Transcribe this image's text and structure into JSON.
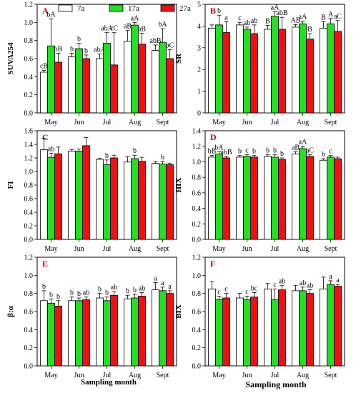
{
  "figure": {
    "colors": {
      "7a": "#ffffff",
      "17a": "#22e022",
      "27a": "#ee1111",
      "axis": "#000000",
      "panel_letter": "#cc0000"
    },
    "legend": [
      "7a",
      "17a",
      "27a"
    ],
    "months": [
      "May",
      "Jun",
      "Jul",
      "Aug",
      "Sept"
    ],
    "xlabel": "Sampling month"
  },
  "chart_data": [
    {
      "panel": "A",
      "type": "bar",
      "ylabel": "SUVA254",
      "ylim": [
        0,
        1.2
      ],
      "yticks": [
        "0.0",
        "0.2",
        "0.4",
        "0.6",
        "0.8",
        "1.0",
        "1.2"
      ],
      "yticks_values": [
        0,
        0.2,
        0.4,
        0.6,
        0.8,
        1.0,
        1.2
      ],
      "categories": [
        "May",
        "Jun",
        "Jul",
        "Aug",
        "Sept"
      ],
      "series": [
        {
          "name": "7a",
          "values": [
            0.45,
            0.62,
            0.6,
            0.79,
            0.69
          ],
          "errors": [
            0.02,
            0.04,
            0.05,
            0.12,
            0.06
          ],
          "labels": [
            "cB",
            "b",
            "abA",
            "aB",
            "abB"
          ]
        },
        {
          "name": "17a",
          "values": [
            0.74,
            0.71,
            0.77,
            0.97,
            0.78
          ],
          "errors": [
            0.3,
            0.06,
            0.12,
            0.03,
            0.15
          ],
          "labels": [
            "bA",
            "b",
            "abA",
            "aA",
            "bA"
          ]
        },
        {
          "name": "27a",
          "values": [
            0.56,
            0.6,
            0.53,
            0.76,
            0.6
          ],
          "errors": [
            0.1,
            0.04,
            0.36,
            0.12,
            0.1
          ],
          "labels": [
            "bB",
            "b",
            "cC",
            "aB",
            "bC"
          ]
        }
      ]
    },
    {
      "panel": "B",
      "type": "bar",
      "ylabel": "SR",
      "ylim": [
        0,
        5
      ],
      "yticks": [
        "0",
        "1",
        "2",
        "3",
        "4",
        "5"
      ],
      "yticks_values": [
        0,
        1,
        2,
        3,
        4,
        5
      ],
      "categories": [
        "May",
        "Jun",
        "Jul",
        "Aug",
        "Sept"
      ],
      "series": [
        {
          "name": "7a",
          "values": [
            3.9,
            4.05,
            3.85,
            3.95,
            3.9
          ],
          "errors": [
            0.15,
            0.12,
            0.18,
            0.12,
            0.3
          ],
          "labels": [
            "",
            "c",
            "B",
            "AB",
            "B"
          ]
        },
        {
          "name": "17a",
          "values": [
            4.05,
            3.85,
            4.45,
            4.1,
            4.1
          ],
          "errors": [
            0.45,
            0.1,
            0.2,
            0.12,
            0.25
          ],
          "labels": [
            "b",
            "ab",
            "aA",
            "aA",
            "A"
          ]
        },
        {
          "name": "27a",
          "values": [
            3.7,
            3.65,
            3.85,
            3.4,
            3.75
          ],
          "errors": [
            0.5,
            0.4,
            0.55,
            0.25,
            0.5
          ],
          "labels": [
            "a",
            "ab",
            "abB",
            "B",
            "aC"
          ]
        }
      ]
    },
    {
      "panel": "C",
      "type": "bar",
      "ylabel": "FI",
      "ylim": [
        0,
        1.6
      ],
      "yticks": [
        "0.0",
        "0.2",
        "0.4",
        "0.6",
        "0.8",
        "1.0",
        "1.2",
        "1.4",
        "1.6"
      ],
      "yticks_values": [
        0,
        0.2,
        0.4,
        0.6,
        0.8,
        1.0,
        1.2,
        1.4,
        1.6
      ],
      "categories": [
        "May",
        "Jun",
        "Jul",
        "Aug",
        "Sept"
      ],
      "series": [
        {
          "name": "7a",
          "values": [
            1.32,
            1.3,
            1.18,
            1.14,
            1.12
          ],
          "errors": [
            0.17,
            0.02,
            0.01,
            0.08,
            0.03
          ],
          "labels": [
            "",
            "",
            "",
            "",
            ""
          ]
        },
        {
          "name": "17a",
          "values": [
            1.21,
            1.3,
            1.1,
            1.19,
            1.11
          ],
          "errors": [
            0.06,
            0.03,
            0.07,
            0.05,
            0.04
          ],
          "labels": [
            "ab",
            "",
            "b",
            "b",
            "b"
          ]
        },
        {
          "name": "27a",
          "values": [
            1.26,
            1.38,
            1.2,
            1.15,
            1.1
          ],
          "errors": [
            0.1,
            0.12,
            0.04,
            0.06,
            0.02
          ],
          "labels": [
            "",
            "",
            "",
            "",
            ""
          ]
        }
      ]
    },
    {
      "panel": "D",
      "type": "bar",
      "ylabel": "HIX",
      "ylim": [
        0,
        1.4
      ],
      "yticks": [
        "0.0",
        "0.2",
        "0.4",
        "0.6",
        "0.8",
        "1.0",
        "1.2",
        "1.4"
      ],
      "yticks_values": [
        0,
        0.2,
        0.4,
        0.6,
        0.8,
        1.0,
        1.2,
        1.4
      ],
      "categories": [
        "May",
        "Jun",
        "Jul",
        "Aug",
        "Sept"
      ],
      "series": [
        {
          "name": "7a",
          "values": [
            1.06,
            1.06,
            1.07,
            1.1,
            1.02
          ],
          "errors": [
            0.02,
            0.02,
            0.02,
            0.03,
            0.02
          ],
          "labels": [
            "bB",
            "b",
            "b",
            "aB",
            "b"
          ]
        },
        {
          "name": "17a",
          "values": [
            1.1,
            1.07,
            1.06,
            1.17,
            1.06
          ],
          "errors": [
            0.03,
            0.02,
            0.03,
            0.03,
            0.02
          ],
          "labels": [
            "bA",
            "c",
            "b",
            "aA",
            "c"
          ]
        },
        {
          "name": "27a",
          "values": [
            1.05,
            1.06,
            1.03,
            1.07,
            1.04
          ],
          "errors": [
            0.02,
            0.02,
            0.02,
            0.02,
            0.02
          ],
          "labels": [
            "abB",
            "b",
            "b",
            "aC",
            ""
          ]
        }
      ]
    },
    {
      "panel": "E",
      "type": "bar",
      "ylabel": "β:α",
      "ylim": [
        0,
        1.2
      ],
      "yticks": [
        "0.0",
        "0.2",
        "0.4",
        "0.6",
        "0.8",
        "1.0",
        "1.2"
      ],
      "yticks_values": [
        0,
        0.2,
        0.4,
        0.6,
        0.8,
        1.0,
        1.2
      ],
      "categories": [
        "May",
        "Jun",
        "Jul",
        "Aug",
        "Sept"
      ],
      "series": [
        {
          "name": "7a",
          "values": [
            0.72,
            0.72,
            0.75,
            0.74,
            0.84
          ],
          "errors": [
            0.11,
            0.04,
            0.05,
            0.04,
            0.08
          ],
          "labels": [
            "b",
            "b",
            "b",
            "b",
            "a"
          ]
        },
        {
          "name": "17a",
          "values": [
            0.69,
            0.72,
            0.72,
            0.75,
            0.83
          ],
          "errors": [
            0.05,
            0.03,
            0.04,
            0.04,
            0.04
          ],
          "labels": [
            "b",
            "b",
            "b",
            "b",
            "a"
          ]
        },
        {
          "name": "27a",
          "values": [
            0.66,
            0.73,
            0.78,
            0.77,
            0.8
          ],
          "errors": [
            0.06,
            0.03,
            0.04,
            0.04,
            0.03
          ],
          "labels": [
            "b",
            "ab",
            "ab",
            "ab",
            "a"
          ]
        }
      ]
    },
    {
      "panel": "F",
      "type": "bar",
      "ylabel": "BIX",
      "ylim": [
        0,
        1.2
      ],
      "yticks": [
        "0.0",
        "0.2",
        "0.4",
        "0.6",
        "0.8",
        "1.0",
        "1.2"
      ],
      "yticks_values": [
        0,
        0.2,
        0.4,
        0.6,
        0.8,
        1.0,
        1.2
      ],
      "categories": [
        "May",
        "Jun",
        "Jul",
        "Aug",
        "Sept"
      ],
      "series": [
        {
          "name": "7a",
          "values": [
            0.85,
            0.75,
            0.85,
            0.83,
            0.85
          ],
          "errors": [
            0.08,
            0.05,
            0.06,
            0.06,
            0.13
          ],
          "labels": [
            "",
            "",
            "",
            "",
            ""
          ]
        },
        {
          "name": "17a",
          "values": [
            0.73,
            0.73,
            0.73,
            0.83,
            0.9
          ],
          "errors": [
            0.04,
            0.04,
            0.12,
            0.04,
            0.04
          ],
          "labels": [
            "c",
            "c",
            "c",
            "ab",
            "a"
          ]
        },
        {
          "name": "27a",
          "values": [
            0.75,
            0.76,
            0.84,
            0.8,
            0.88
          ],
          "errors": [
            0.05,
            0.05,
            0.05,
            0.04,
            0.02
          ],
          "labels": [
            "c",
            "bc",
            "ab",
            "ab",
            "a"
          ]
        }
      ]
    }
  ]
}
